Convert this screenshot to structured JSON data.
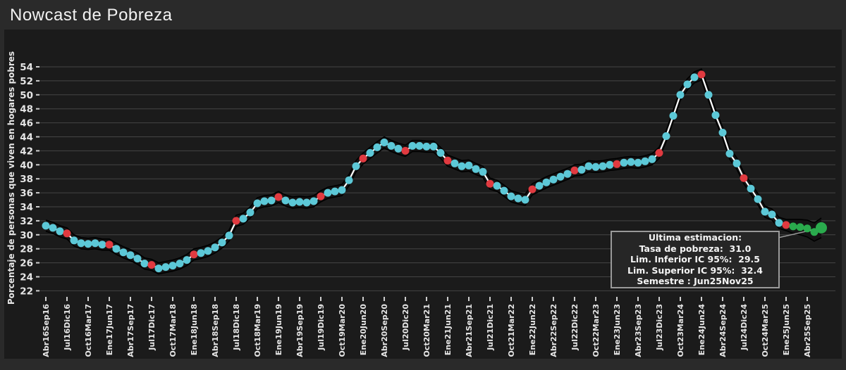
{
  "title": "Nowcast de Pobreza",
  "colors": {
    "figure_bg": "#2a2a2a",
    "plot_bg": "#1b1b1b",
    "gridline": "#454545",
    "tick_text": "#e6e6e6",
    "title_text": "#f2f2f2",
    "monthly_nowcast_marker": "#5cc8d7",
    "official_marker": "#e03a40",
    "latest_nowcast_marker": "#2aab4d",
    "trend_line": "#ffffff",
    "ci_band_fill": "#141414",
    "ci_band_edge": "#000000",
    "annotation_border": "#9a9a9a",
    "leader_line": "#9a9a9a"
  },
  "chart_data": {
    "type": "line",
    "title": "Nowcast de Pobreza",
    "xlabel": "",
    "ylabel": "Porcentaje de personas que viven en hogares pobres",
    "ylim": [
      21.5,
      55
    ],
    "grid": true,
    "legend": false,
    "yticks": [
      22,
      24,
      26,
      28,
      30,
      32,
      34,
      36,
      38,
      40,
      42,
      44,
      46,
      48,
      50,
      52,
      54
    ],
    "x_tick_labels": [
      "Abr16Sep16",
      "Jul16Dic16",
      "Oct16Mar17",
      "Ene17Jun17",
      "Abr17Sep17",
      "Jul17Dic17",
      "Oct17Mar18",
      "Ene18Jun18",
      "Abr18Sep18",
      "Jul18Dic18",
      "Oct18Mar19",
      "Ene19Jun19",
      "Abr19Sep19",
      "Jul19Dic19",
      "Oct19Mar20",
      "Ene20Jun20",
      "Abr20Sep20",
      "Jul20Dic20",
      "Oct20Mar21",
      "Ene21Jun21",
      "Abr21Sep21",
      "Jul21Dic21",
      "Oct21Mar22",
      "Ene22Jun22",
      "Abr22Sep22",
      "Jul22Dic22",
      "Oct22Mar23",
      "Ene23Jun23",
      "Abr23Sep23",
      "Jul23Dic23",
      "Oct23Mar24",
      "Ene24Jun24",
      "Abr24Sep24",
      "Jul24Dic24",
      "Oct24Mar25",
      "Ene25Jun25",
      "Abr25Sep25"
    ],
    "points_per_tick": 3,
    "values": [
      31.3,
      31.0,
      30.5,
      30.2,
      29.2,
      28.8,
      28.7,
      28.8,
      28.6,
      28.6,
      28.0,
      27.5,
      27.1,
      26.6,
      25.9,
      25.7,
      25.2,
      25.4,
      25.6,
      25.9,
      26.4,
      27.2,
      27.4,
      27.7,
      28.2,
      28.9,
      29.9,
      32.0,
      32.3,
      33.2,
      34.5,
      34.8,
      34.9,
      35.4,
      34.9,
      34.6,
      34.7,
      34.6,
      34.8,
      35.5,
      36.0,
      36.2,
      36.4,
      37.8,
      39.8,
      40.9,
      41.7,
      42.5,
      43.2,
      42.7,
      42.3,
      42.0,
      42.7,
      42.7,
      42.6,
      42.6,
      41.7,
      40.6,
      40.2,
      39.8,
      39.9,
      39.4,
      39.0,
      37.3,
      37.0,
      36.3,
      35.5,
      35.2,
      35.0,
      36.5,
      37.0,
      37.5,
      37.9,
      38.3,
      38.7,
      39.2,
      39.3,
      39.8,
      39.7,
      39.8,
      40.0,
      40.1,
      40.3,
      40.4,
      40.3,
      40.5,
      40.8,
      41.7,
      44.1,
      47.0,
      50.0,
      51.5,
      52.5,
      52.9,
      50.0,
      47.1,
      44.6,
      41.6,
      40.2,
      38.1,
      36.6,
      35.1,
      33.3,
      32.9,
      31.7,
      31.4,
      31.2,
      31.1,
      30.9,
      30.4,
      31.0
    ],
    "official_indices": [
      3,
      9,
      15,
      21,
      27,
      33,
      39,
      45,
      51,
      57,
      63,
      69,
      75,
      81,
      87,
      93,
      99,
      105
    ],
    "latest_nowcast_indices": [
      106,
      107,
      108,
      109,
      110
    ],
    "highlight_index": 110,
    "ci": {
      "default_halfwidth": 0.8,
      "tail_start_index": 105,
      "tail_halfwidths": [
        1.0,
        1.1,
        1.2,
        1.3,
        1.4,
        1.45
      ],
      "latest_lower": 29.5,
      "latest_upper": 32.4
    },
    "annotation": {
      "lines": [
        "Ultima estimacion:",
        "Tasa de pobreza:  31.0",
        "Lim. Inferior IC 95%:  29.5",
        "Lim. Superior IC 95%:  32.4",
        "Semestre : Jun25Nov25"
      ],
      "tasa_de_pobreza": 31.0,
      "lim_inferior_ic_95": 29.5,
      "lim_superior_ic_95": 32.4,
      "semestre": "Jun25Nov25"
    }
  }
}
